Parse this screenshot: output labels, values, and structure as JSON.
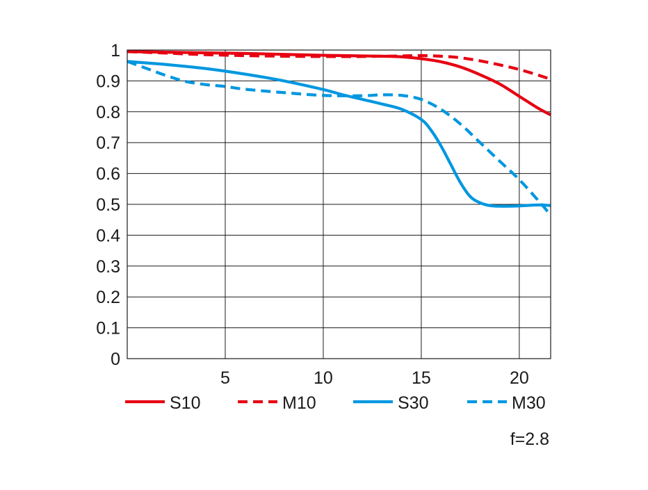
{
  "chart_data": {
    "type": "line",
    "title": "",
    "xlabel": "",
    "ylabel": "",
    "xlim": [
      0,
      21.6
    ],
    "ylim": [
      0,
      1
    ],
    "grid": true,
    "legend_position": "bottom",
    "x_ticks": [
      5,
      10,
      15,
      20
    ],
    "x_tick_labels": [
      "5",
      "10",
      "15",
      "20"
    ],
    "y_ticks": [
      0,
      0.1,
      0.2,
      0.3,
      0.4,
      0.5,
      0.6,
      0.7,
      0.8,
      0.9,
      1
    ],
    "y_tick_labels": [
      "0",
      "0.1",
      "0.2",
      "0.3",
      "0.4",
      "0.5",
      "0.6",
      "0.7",
      "0.8",
      "0.9",
      "1"
    ],
    "annotation": "f=2.8",
    "series": [
      {
        "name": "S10",
        "color": "#e60012",
        "dashed": false,
        "x": [
          0,
          2,
          4,
          6,
          8,
          10,
          12,
          13,
          14,
          15,
          16,
          17,
          18,
          19,
          20,
          21,
          21.6
        ],
        "y": [
          0.995,
          0.993,
          0.991,
          0.989,
          0.986,
          0.983,
          0.981,
          0.98,
          0.978,
          0.972,
          0.962,
          0.945,
          0.92,
          0.89,
          0.85,
          0.81,
          0.79
        ]
      },
      {
        "name": "M10",
        "color": "#e60012",
        "dashed": true,
        "x": [
          0,
          2,
          4,
          6,
          8,
          10,
          12,
          14,
          15,
          16,
          17,
          18,
          19,
          20,
          21,
          21.6
        ],
        "y": [
          0.995,
          0.99,
          0.985,
          0.982,
          0.98,
          0.979,
          0.979,
          0.981,
          0.982,
          0.98,
          0.975,
          0.965,
          0.952,
          0.937,
          0.918,
          0.905
        ]
      },
      {
        "name": "S30",
        "color": "#0097e0",
        "dashed": false,
        "x": [
          0,
          2,
          4,
          6,
          8,
          10,
          11,
          12,
          13,
          14,
          15,
          15.5,
          16,
          16.5,
          17,
          17.5,
          18,
          18.5,
          19,
          19.5,
          20,
          21,
          21.6
        ],
        "y": [
          0.963,
          0.953,
          0.94,
          0.922,
          0.9,
          0.872,
          0.855,
          0.84,
          0.825,
          0.808,
          0.775,
          0.74,
          0.69,
          0.63,
          0.57,
          0.525,
          0.505,
          0.496,
          0.494,
          0.494,
          0.495,
          0.498,
          0.496
        ]
      },
      {
        "name": "M30",
        "color": "#0097e0",
        "dashed": true,
        "x": [
          0,
          1,
          2,
          3,
          4,
          5,
          6,
          8,
          10,
          12,
          13,
          14,
          15,
          16,
          17,
          18,
          19,
          20,
          21,
          21.6
        ],
        "y": [
          0.963,
          0.94,
          0.917,
          0.898,
          0.888,
          0.882,
          0.873,
          0.862,
          0.853,
          0.852,
          0.855,
          0.853,
          0.84,
          0.808,
          0.76,
          0.7,
          0.64,
          0.58,
          0.51,
          0.465
        ]
      }
    ]
  }
}
